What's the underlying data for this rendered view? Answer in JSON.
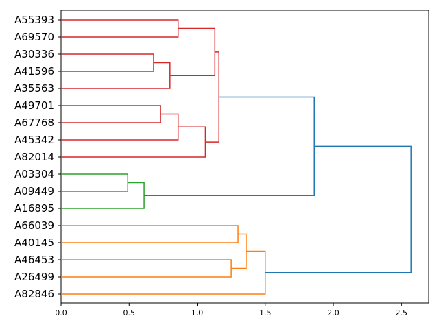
{
  "chart_data": {
    "type": "dendrogram",
    "orientation": "left",
    "xlim": [
      0.0,
      2.7
    ],
    "xticks": [
      "0.0",
      "0.5",
      "1.0",
      "1.5",
      "2.0",
      "2.5"
    ],
    "xtick_values": [
      0.0,
      0.5,
      1.0,
      1.5,
      2.0,
      2.5
    ],
    "leaves": [
      "A55393",
      "A69570",
      "A30336",
      "A41596",
      "A35563",
      "A49701",
      "A67768",
      "A45342",
      "A82014",
      "A03304",
      "A09449",
      "A16895",
      "A66039",
      "A40145",
      "A46453",
      "A26499",
      "A82846"
    ],
    "colors": {
      "red": "#d62728",
      "green": "#2ca02c",
      "orange": "#ff7f0e",
      "blue": "#1f77b4"
    },
    "links": [
      {
        "left": "A55393",
        "right": "A69570",
        "height": 0.86,
        "color": "red"
      },
      {
        "left": "A30336",
        "right": "A41596",
        "height": 0.68,
        "color": "red"
      },
      {
        "left": "L2",
        "right": "A35563",
        "height": 0.8,
        "color": "red"
      },
      {
        "left": "L1",
        "right": "L3",
        "height": 1.13,
        "color": "red"
      },
      {
        "left": "A49701",
        "right": "A67768",
        "height": 0.73,
        "color": "red"
      },
      {
        "left": "L5",
        "right": "A45342",
        "height": 0.86,
        "color": "red"
      },
      {
        "left": "L6",
        "right": "A82014",
        "height": 1.06,
        "color": "red"
      },
      {
        "left": "L4",
        "right": "L7",
        "height": 1.16,
        "color": "red"
      },
      {
        "left": "A03304",
        "right": "A09449",
        "height": 0.49,
        "color": "green"
      },
      {
        "left": "L9",
        "right": "A16895",
        "height": 0.61,
        "color": "green"
      },
      {
        "left": "L8",
        "right": "L10",
        "height": 1.86,
        "color": "blue"
      },
      {
        "left": "A66039",
        "right": "A40145",
        "height": 1.3,
        "color": "orange"
      },
      {
        "left": "A46453",
        "right": "A26499",
        "height": 1.25,
        "color": "orange"
      },
      {
        "left": "L12",
        "right": "L13",
        "height": 1.36,
        "color": "orange"
      },
      {
        "left": "L14",
        "right": "A82846",
        "height": 1.5,
        "color": "orange"
      },
      {
        "left": "L11",
        "right": "L15",
        "height": 2.57,
        "color": "blue"
      }
    ]
  }
}
